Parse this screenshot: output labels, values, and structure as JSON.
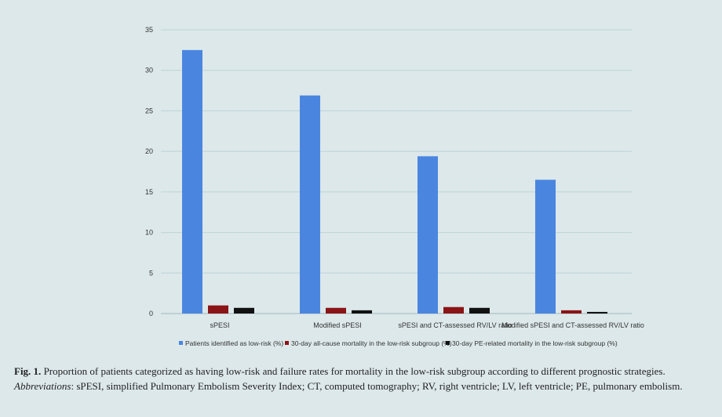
{
  "chart_data": {
    "type": "bar",
    "categories": [
      "sPESI",
      "Modified sPESI",
      "sPESI and CT-assessed RV/LV ratio",
      "Modified sPESI and CT-assessed RV/LV ratio"
    ],
    "series": [
      {
        "name": "Patients identified as low-risk (%)",
        "color": "#4a86e0",
        "values": [
          32.5,
          26.9,
          19.4,
          16.5
        ]
      },
      {
        "name": "30-day all-cause mortality in the low-risk subgroup (%)",
        "color": "#8b1416",
        "values": [
          1.0,
          0.7,
          0.8,
          0.4
        ]
      },
      {
        "name": "30-day PE-related mortality in the low-risk subgroup (%)",
        "color": "#111111",
        "values": [
          0.7,
          0.4,
          0.7,
          0.2
        ]
      }
    ],
    "yticks": [
      "0",
      "5",
      "10",
      "15",
      "20",
      "25",
      "30",
      "35"
    ],
    "ylim": [
      0,
      35
    ],
    "grid": true,
    "legend_position": "bottom"
  },
  "caption": {
    "fig_label": "Fig. 1.",
    "fig_text": " Proportion of patients categorized as having low-risk and failure rates for mortality in the low-risk subgroup according to different prognostic strategies.",
    "abbr_label": "Abbreviations",
    "abbr_text": ": sPESI, simplified Pulmonary Embolism Severity Index; CT, computed tomography; RV, right ventricle; LV, left ventricle; PE, pulmonary embolism."
  }
}
